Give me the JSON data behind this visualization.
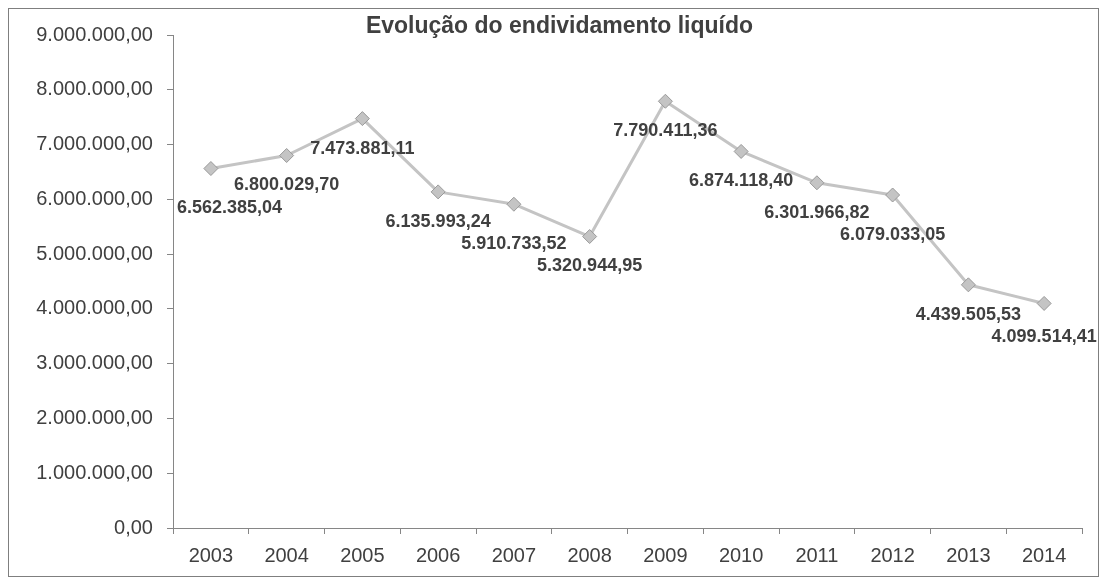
{
  "chart_data": {
    "type": "line",
    "title": "Evolução do endividamento liquído",
    "categories": [
      "2003",
      "2004",
      "2005",
      "2006",
      "2007",
      "2008",
      "2009",
      "2010",
      "2011",
      "2012",
      "2013",
      "2014"
    ],
    "series": [
      {
        "color": "#c4c4c4",
        "values": [
          6562385.04,
          6800029.7,
          7473881.11,
          6135993.24,
          5910733.52,
          5320944.95,
          7790411.36,
          6874118.4,
          6301966.82,
          6079033.05,
          4439505.53,
          4099514.41
        ],
        "value_labels": [
          "6.562.385,04",
          "6.800.029,70",
          "7.473.881,11",
          "6.135.993,24",
          "5.910.733,52",
          "5.320.944,95",
          "7.790.411,36",
          "6.874.118,40",
          "6.301.966,82",
          "6.079.033,05",
          "4.439.505,53",
          "4.099.514,41"
        ]
      }
    ],
    "ylim": [
      0,
      9000000
    ],
    "yticks": [
      {
        "value": 0,
        "label": "0,00"
      },
      {
        "value": 1000000,
        "label": "1.000.000,00"
      },
      {
        "value": 2000000,
        "label": "2.000.000,00"
      },
      {
        "value": 3000000,
        "label": "3.000.000,00"
      },
      {
        "value": 4000000,
        "label": "4.000.000,00"
      },
      {
        "value": 5000000,
        "label": "5.000.000,00"
      },
      {
        "value": 6000000,
        "label": "6.000.000,00"
      },
      {
        "value": 7000000,
        "label": "7.000.000,00"
      },
      {
        "value": 8000000,
        "label": "8.000.000,00"
      },
      {
        "value": 9000000,
        "label": "9.000.000,00"
      }
    ],
    "grid": false,
    "legend": false,
    "marker": "diamond",
    "line_style": "solid"
  }
}
